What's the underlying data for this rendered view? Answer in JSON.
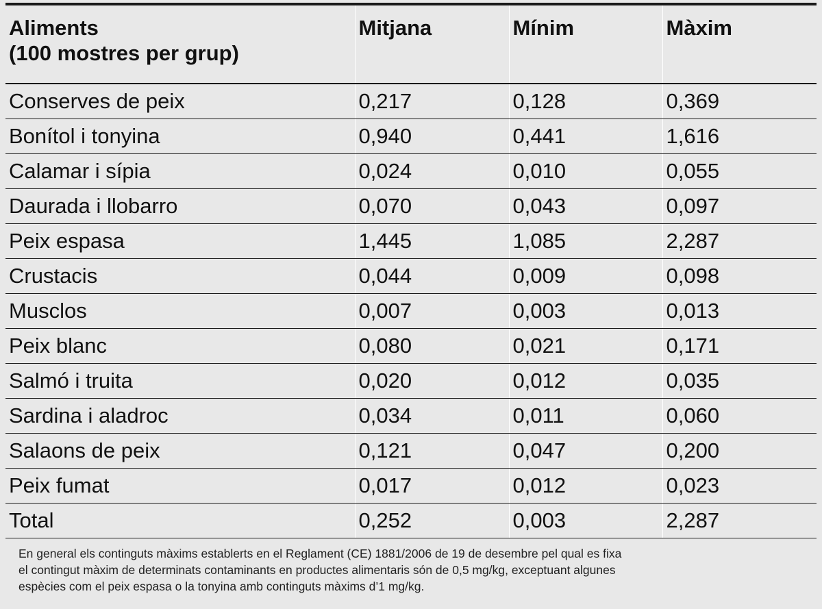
{
  "table": {
    "headers": {
      "food_line1": "Aliments",
      "food_line2": "(100 mostres per grup)",
      "mean": "Mitjana",
      "min": "Mínim",
      "max": "Màxim"
    },
    "rows": [
      {
        "food": "Conserves de peix",
        "mean": "0,217",
        "min": "0,128",
        "max": "0,369"
      },
      {
        "food": "Bonítol i tonyina",
        "mean": "0,940",
        "min": "0,441",
        "max": "1,616"
      },
      {
        "food": "Calamar i sípia",
        "mean": "0,024",
        "min": "0,010",
        "max": "0,055"
      },
      {
        "food": "Daurada i llobarro",
        "mean": "0,070",
        "min": "0,043",
        "max": "0,097"
      },
      {
        "food": "Peix espasa",
        "mean": "1,445",
        "min": "1,085",
        "max": "2,287"
      },
      {
        "food": "Crustacis",
        "mean": "0,044",
        "min": "0,009",
        "max": "0,098"
      },
      {
        "food": "Musclos",
        "mean": "0,007",
        "min": "0,003",
        "max": "0,013"
      },
      {
        "food": "Peix blanc",
        "mean": "0,080",
        "min": "0,021",
        "max": "0,171"
      },
      {
        "food": "Salmó i truita",
        "mean": "0,020",
        "min": "0,012",
        "max": "0,035"
      },
      {
        "food": "Sardina i aladroc",
        "mean": "0,034",
        "min": "0,011",
        "max": "0,060"
      },
      {
        "food": "Salaons de peix",
        "mean": "0,121",
        "min": "0,047",
        "max": "0,200"
      },
      {
        "food": "Peix fumat",
        "mean": "0,017",
        "min": "0,012",
        "max": "0,023"
      },
      {
        "food": "Total",
        "mean": "0,252",
        "min": "0,003",
        "max": "2,287"
      }
    ]
  },
  "footnote": {
    "line1": "En general els continguts màxims establerts en el Reglament (CE) 1881/2006 de 19 de desembre pel qual es fixa",
    "line2": "el contingut màxim de determinats contaminants en productes alimentaris són de 0,5 mg/kg, exceptuant algunes",
    "line3": "espècies com el peix espasa o la tonyina amb continguts màxims d’1 mg/kg."
  },
  "colors": {
    "background": "#e8e8e8",
    "rule": "#1a1a1a",
    "text": "#111111"
  }
}
